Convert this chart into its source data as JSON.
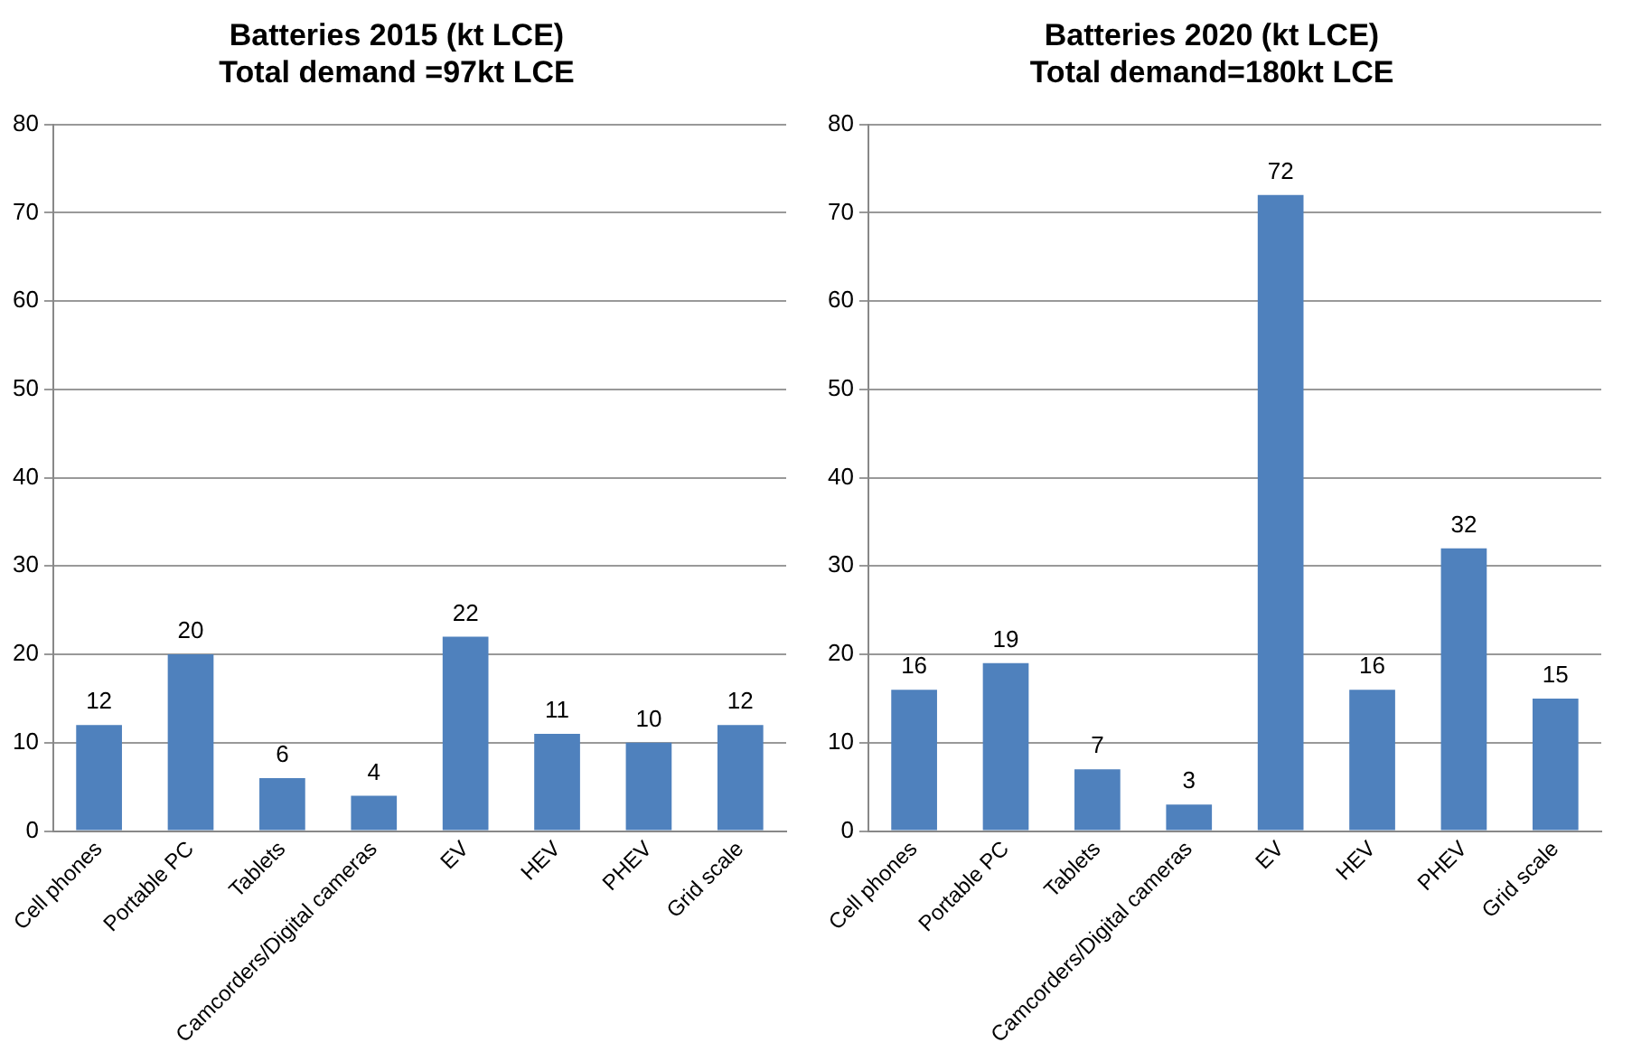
{
  "chart_data": [
    {
      "type": "bar",
      "title": "Batteries 2015 (kt LCE)",
      "subtitle": "Total demand =97kt LCE",
      "categories": [
        "Cell phones",
        "Portable PC",
        "Tablets",
        "Camcorders/Digital cameras",
        "EV",
        "HEV",
        "PHEV",
        "Grid scale"
      ],
      "values": [
        12,
        20,
        6,
        4,
        22,
        11,
        10,
        12
      ],
      "color": "#4f81bd",
      "ylim": [
        0,
        80
      ],
      "yticks": [
        0,
        10,
        20,
        30,
        40,
        50,
        60,
        70,
        80
      ],
      "grid": "y",
      "data_labels": true
    },
    {
      "type": "bar",
      "title": "Batteries 2020 (kt LCE)",
      "subtitle": "Total demand=180kt LCE",
      "categories": [
        "Cell phones",
        "Portable PC",
        "Tablets",
        "Camcorders/Digital cameras",
        "EV",
        "HEV",
        "PHEV",
        "Grid scale"
      ],
      "values": [
        16,
        19,
        7,
        3,
        72,
        16,
        32,
        15
      ],
      "color": "#4f81bd",
      "ylim": [
        0,
        80
      ],
      "yticks": [
        0,
        10,
        20,
        30,
        40,
        50,
        60,
        70,
        80
      ],
      "grid": "y",
      "data_labels": true
    }
  ]
}
